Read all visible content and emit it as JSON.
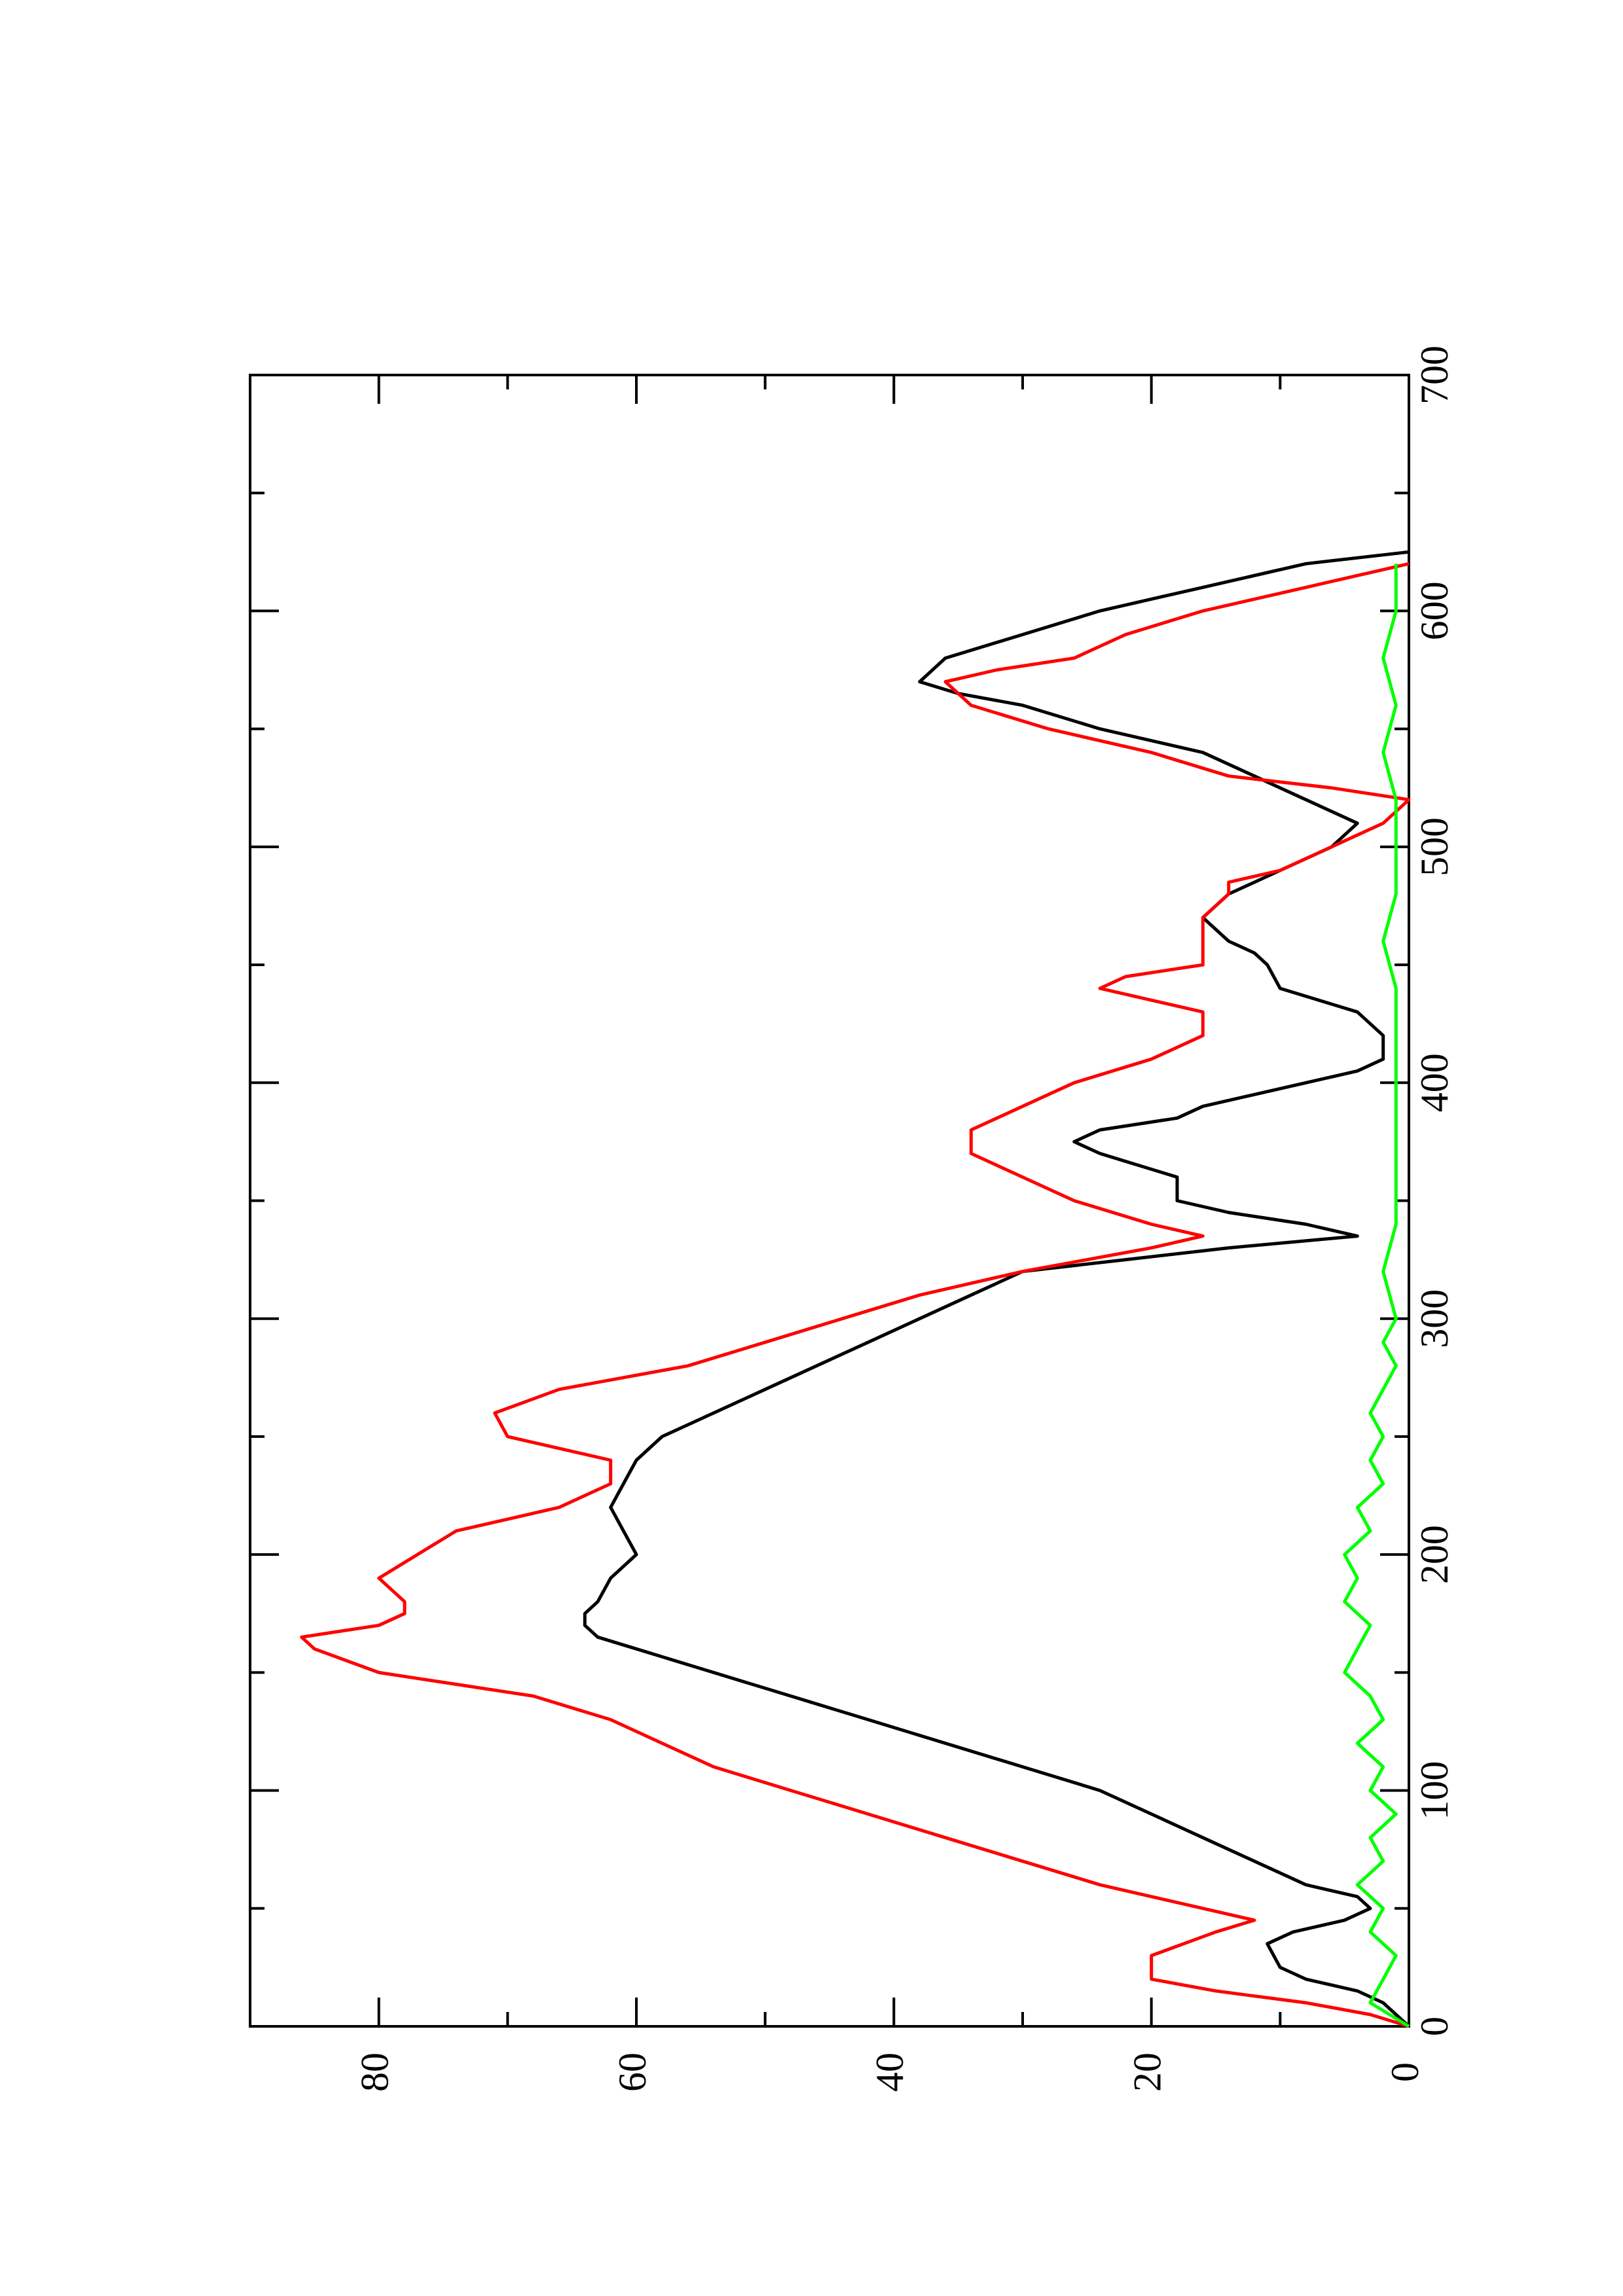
{
  "chart_data": {
    "type": "line",
    "orientation": "rotated-90-ccw",
    "title": "",
    "xlabel": "",
    "ylabel": "",
    "xlim": [
      0,
      700
    ],
    "ylim": [
      0,
      90
    ],
    "x_ticks": [
      0,
      100,
      200,
      300,
      400,
      500,
      600,
      700
    ],
    "x_ticks_minor": [
      50,
      150,
      250,
      350,
      450,
      550,
      650
    ],
    "y_ticks": [
      0,
      20,
      40,
      60,
      80
    ],
    "y_ticks_minor": [
      10,
      30,
      50,
      70
    ],
    "grid": false,
    "legend": "none",
    "series": [
      {
        "color": "#000000",
        "points": [
          [
            0,
            0
          ],
          [
            5,
            1
          ],
          [
            10,
            2
          ],
          [
            15,
            4
          ],
          [
            20,
            8
          ],
          [
            25,
            10
          ],
          [
            35,
            11
          ],
          [
            40,
            9
          ],
          [
            45,
            5
          ],
          [
            50,
            3
          ],
          [
            55,
            4
          ],
          [
            60,
            8
          ],
          [
            70,
            12
          ],
          [
            80,
            16
          ],
          [
            90,
            20
          ],
          [
            100,
            24
          ],
          [
            110,
            30
          ],
          [
            120,
            36
          ],
          [
            130,
            42
          ],
          [
            140,
            48
          ],
          [
            150,
            54
          ],
          [
            160,
            60
          ],
          [
            165,
            63
          ],
          [
            170,
            64
          ],
          [
            175,
            64
          ],
          [
            180,
            63
          ],
          [
            190,
            62
          ],
          [
            200,
            60
          ],
          [
            210,
            61
          ],
          [
            220,
            62
          ],
          [
            230,
            61
          ],
          [
            240,
            60
          ],
          [
            250,
            58
          ],
          [
            260,
            54
          ],
          [
            270,
            50
          ],
          [
            280,
            46
          ],
          [
            290,
            42
          ],
          [
            300,
            38
          ],
          [
            310,
            34
          ],
          [
            320,
            30
          ],
          [
            325,
            22
          ],
          [
            330,
            14
          ],
          [
            335,
            4
          ],
          [
            340,
            8
          ],
          [
            345,
            14
          ],
          [
            350,
            18
          ],
          [
            360,
            18
          ],
          [
            370,
            24
          ],
          [
            375,
            26
          ],
          [
            380,
            24
          ],
          [
            385,
            18
          ],
          [
            390,
            16
          ],
          [
            400,
            8
          ],
          [
            405,
            4
          ],
          [
            410,
            2
          ],
          [
            420,
            2
          ],
          [
            430,
            4
          ],
          [
            440,
            10
          ],
          [
            450,
            11
          ],
          [
            455,
            12
          ],
          [
            460,
            14
          ],
          [
            470,
            16
          ],
          [
            480,
            14
          ],
          [
            490,
            10
          ],
          [
            500,
            6
          ],
          [
            510,
            4
          ],
          [
            520,
            8
          ],
          [
            525,
            10
          ],
          [
            530,
            12
          ],
          [
            540,
            16
          ],
          [
            550,
            24
          ],
          [
            560,
            30
          ],
          [
            565,
            35
          ],
          [
            570,
            38
          ],
          [
            580,
            36
          ],
          [
            590,
            30
          ],
          [
            600,
            24
          ],
          [
            610,
            16
          ],
          [
            620,
            8
          ],
          [
            625,
            0
          ]
        ]
      },
      {
        "color": "#ff0000",
        "points": [
          [
            0,
            0
          ],
          [
            5,
            3
          ],
          [
            10,
            8
          ],
          [
            15,
            15
          ],
          [
            20,
            20
          ],
          [
            30,
            20
          ],
          [
            40,
            15
          ],
          [
            45,
            12
          ],
          [
            50,
            16
          ],
          [
            60,
            24
          ],
          [
            70,
            30
          ],
          [
            80,
            36
          ],
          [
            90,
            42
          ],
          [
            100,
            48
          ],
          [
            110,
            54
          ],
          [
            120,
            58
          ],
          [
            130,
            62
          ],
          [
            140,
            68
          ],
          [
            145,
            74
          ],
          [
            150,
            80
          ],
          [
            160,
            85
          ],
          [
            165,
            86
          ],
          [
            170,
            80
          ],
          [
            175,
            78
          ],
          [
            180,
            78
          ],
          [
            190,
            80
          ],
          [
            200,
            77
          ],
          [
            210,
            74
          ],
          [
            220,
            66
          ],
          [
            225,
            64
          ],
          [
            230,
            62
          ],
          [
            240,
            62
          ],
          [
            250,
            70
          ],
          [
            260,
            71
          ],
          [
            270,
            66
          ],
          [
            280,
            56
          ],
          [
            290,
            50
          ],
          [
            300,
            44
          ],
          [
            310,
            38
          ],
          [
            320,
            30
          ],
          [
            330,
            20
          ],
          [
            335,
            16
          ],
          [
            340,
            20
          ],
          [
            350,
            26
          ],
          [
            360,
            30
          ],
          [
            370,
            34
          ],
          [
            380,
            34
          ],
          [
            390,
            30
          ],
          [
            400,
            26
          ],
          [
            410,
            20
          ],
          [
            420,
            16
          ],
          [
            430,
            16
          ],
          [
            440,
            24
          ],
          [
            445,
            22
          ],
          [
            450,
            16
          ],
          [
            460,
            16
          ],
          [
            465,
            16
          ],
          [
            470,
            16
          ],
          [
            480,
            14
          ],
          [
            485,
            14
          ],
          [
            490,
            10
          ],
          [
            500,
            6
          ],
          [
            505,
            4
          ],
          [
            510,
            2
          ],
          [
            520,
            0
          ],
          [
            525,
            6
          ],
          [
            530,
            14
          ],
          [
            540,
            20
          ],
          [
            550,
            28
          ],
          [
            560,
            34
          ],
          [
            570,
            36
          ],
          [
            575,
            32
          ],
          [
            580,
            26
          ],
          [
            590,
            22
          ],
          [
            600,
            16
          ],
          [
            610,
            8
          ],
          [
            620,
            0
          ]
        ]
      },
      {
        "color": "#00ff00",
        "points": [
          [
            0,
            0
          ],
          [
            10,
            3
          ],
          [
            20,
            2
          ],
          [
            30,
            1
          ],
          [
            40,
            3
          ],
          [
            50,
            2
          ],
          [
            60,
            4
          ],
          [
            70,
            2
          ],
          [
            80,
            3
          ],
          [
            90,
            1
          ],
          [
            100,
            3
          ],
          [
            110,
            2
          ],
          [
            120,
            4
          ],
          [
            130,
            2
          ],
          [
            140,
            3
          ],
          [
            150,
            5
          ],
          [
            160,
            4
          ],
          [
            170,
            3
          ],
          [
            180,
            5
          ],
          [
            190,
            4
          ],
          [
            200,
            5
          ],
          [
            210,
            3
          ],
          [
            220,
            4
          ],
          [
            230,
            2
          ],
          [
            240,
            3
          ],
          [
            250,
            2
          ],
          [
            260,
            3
          ],
          [
            270,
            2
          ],
          [
            280,
            1
          ],
          [
            290,
            2
          ],
          [
            300,
            1
          ],
          [
            320,
            2
          ],
          [
            340,
            1
          ],
          [
            360,
            1
          ],
          [
            380,
            1
          ],
          [
            400,
            1
          ],
          [
            420,
            1
          ],
          [
            440,
            1
          ],
          [
            460,
            2
          ],
          [
            480,
            1
          ],
          [
            500,
            1
          ],
          [
            520,
            1
          ],
          [
            540,
            2
          ],
          [
            560,
            1
          ],
          [
            580,
            2
          ],
          [
            600,
            1
          ],
          [
            620,
            1
          ]
        ]
      }
    ]
  }
}
